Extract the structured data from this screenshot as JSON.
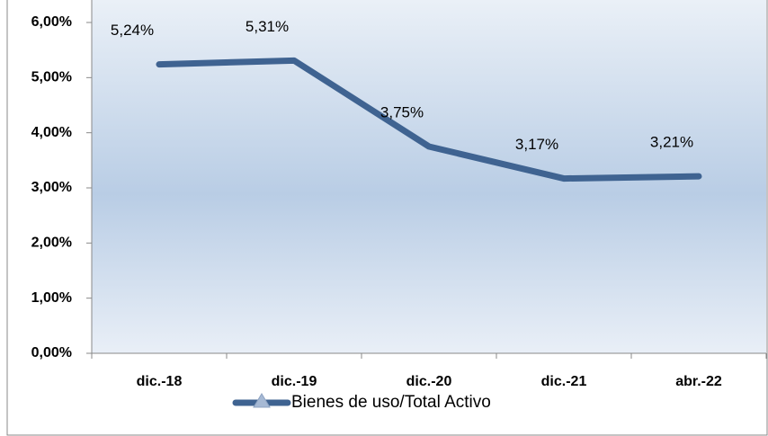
{
  "chart_data": {
    "type": "line",
    "categories": [
      "dic.-18",
      "dic.-19",
      "dic.-20",
      "dic.-21",
      "abr.-22"
    ],
    "series": [
      {
        "name": "Bienes de uso/Total Activo",
        "color": "#3f6391",
        "values": [
          5.24,
          5.31,
          3.75,
          3.17,
          3.21
        ],
        "value_labels": [
          "5,24%",
          "5,31%",
          "3,75%",
          "3,17%",
          "3,21%"
        ]
      }
    ],
    "ylim": [
      0,
      6
    ],
    "yticks": [
      {
        "value": 0,
        "label": "0,00%"
      },
      {
        "value": 1,
        "label": "1,00%"
      },
      {
        "value": 2,
        "label": "2,00%"
      },
      {
        "value": 3,
        "label": "3,00%"
      },
      {
        "value": 4,
        "label": "4,00%"
      },
      {
        "value": 5,
        "label": "5,00%"
      },
      {
        "value": 6,
        "label": "6,00%"
      }
    ],
    "grid": false,
    "legend": "bottom"
  }
}
